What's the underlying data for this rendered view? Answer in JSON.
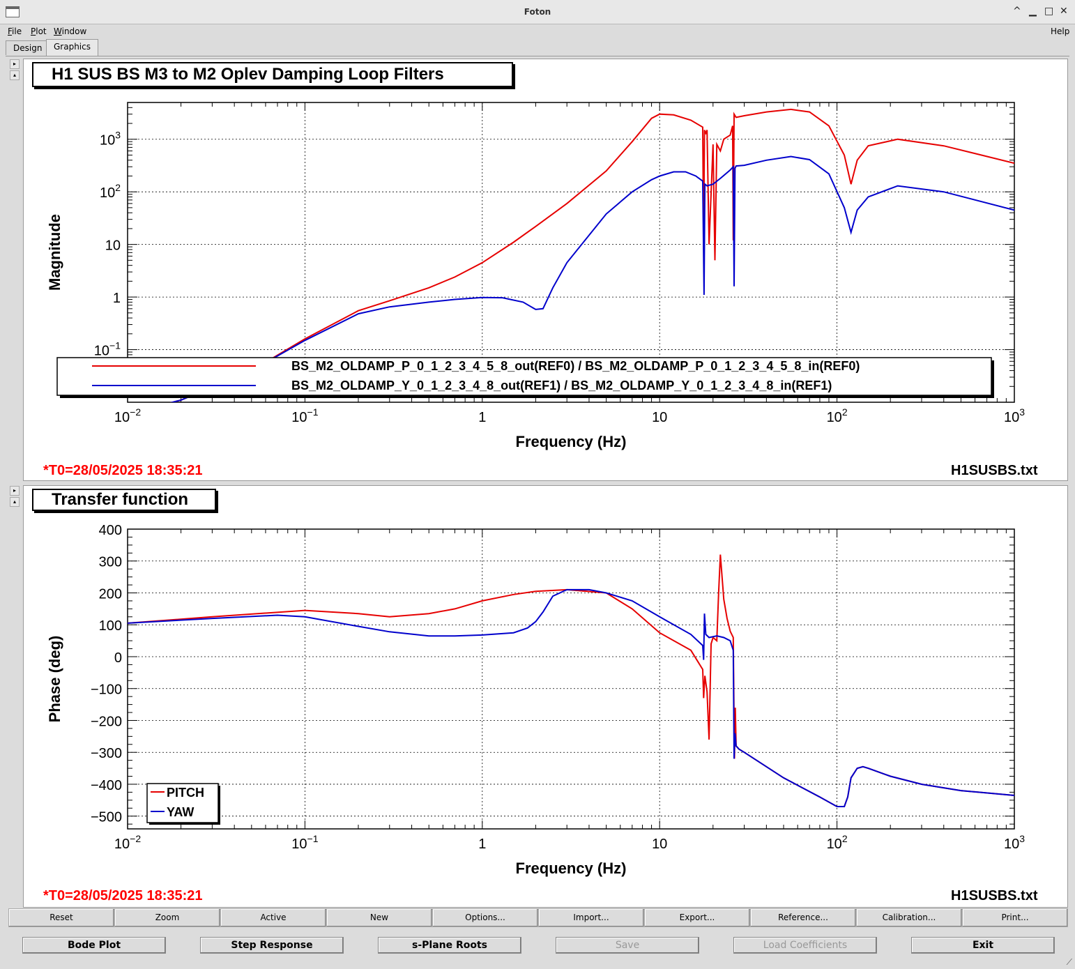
{
  "window": {
    "title": "Foton",
    "min_glyph": "^",
    "restore_glyph": "▁",
    "max_glyph": "□",
    "close_glyph": "✕"
  },
  "menu": {
    "file": "File",
    "file_key": "F",
    "file_rest": "ile",
    "plot_key": "P",
    "plot_rest": "lot",
    "window_key": "W",
    "window_rest": "indow",
    "help": "Help"
  },
  "tabs": {
    "design": "Design",
    "graphics": "Graphics"
  },
  "top_plot": {
    "title": "H1 SUS BS M3 to M2 Oplev Damping Loop Filters",
    "ylabel": "Magnitude",
    "xlabel": "Frequency (Hz)",
    "t0": "*T0=28/05/2025 18:35:21",
    "filename": "H1SUSBS.txt",
    "legend": [
      {
        "label": "BS_M2_OLDAMP_P_0_1_2_3_4_5_8_out(REF0) / BS_M2_OLDAMP_P_0_1_2_3_4_5_8_in(REF0)",
        "color": "#e60000"
      },
      {
        "label": "BS_M2_OLDAMP_Y_0_1_2_3_4_8_out(REF1) / BS_M2_OLDAMP_Y_0_1_2_3_4_8_in(REF1)",
        "color": "#0000cc"
      }
    ]
  },
  "bottom_plot": {
    "title": "Transfer function",
    "ylabel": "Phase (deg)",
    "xlabel": "Frequency (Hz)",
    "t0": "*T0=28/05/2025 18:35:21",
    "filename": "H1SUSBS.txt",
    "legend": [
      {
        "label": "PITCH",
        "color": "#e60000"
      },
      {
        "label": "YAW",
        "color": "#0000cc"
      }
    ]
  },
  "chart_data": [
    {
      "type": "line",
      "title": "H1 SUS BS M3 to M2 Oplev Damping Loop Filters",
      "xlabel": "Frequency (Hz)",
      "ylabel": "Magnitude",
      "xscale": "log",
      "yscale": "log",
      "xlim": [
        0.01,
        1000
      ],
      "ylim": [
        0.01,
        5000
      ],
      "xticks": [
        "10^-2",
        "10^-1",
        "1",
        "10",
        "10^2",
        "10^3"
      ],
      "yticks": [
        "10^-1",
        "1",
        "10",
        "10^2",
        "10^3"
      ],
      "grid": true,
      "legend_position": "bottom",
      "series": [
        {
          "name": "BS_M2_OLDAMP_P_0_1_2_3_4_5_8_out(REF0) / BS_M2_OLDAMP_P_0_1_2_3_4_5_8_in(REF0)",
          "color": "#e60000",
          "x": [
            0.01,
            0.02,
            0.05,
            0.1,
            0.2,
            0.3,
            0.5,
            0.7,
            1,
            1.5,
            2,
            3,
            5,
            7,
            9,
            10,
            12,
            15,
            17.5,
            17.7,
            17.9,
            18.2,
            18.5,
            19,
            20,
            20.5,
            21,
            22,
            23,
            25,
            25.8,
            26,
            26.3,
            27,
            30,
            40,
            55,
            70,
            90,
            110,
            120,
            130,
            150,
            220,
            400,
            1000
          ],
          "y": [
            0.006,
            0.011,
            0.04,
            0.16,
            0.55,
            0.85,
            1.5,
            2.4,
            4.5,
            11,
            22,
            60,
            250,
            900,
            2500,
            3000,
            2900,
            2300,
            1700,
            8,
            1500,
            1300,
            1500,
            10,
            800,
            5,
            800,
            600,
            1000,
            1200,
            1800,
            12,
            3000,
            2600,
            2800,
            3300,
            3700,
            3300,
            1800,
            500,
            140,
            400,
            750,
            1000,
            750,
            350
          ]
        },
        {
          "name": "BS_M2_OLDAMP_Y_0_1_2_3_4_8_out(REF1) / BS_M2_OLDAMP_Y_0_1_2_3_4_8_in(REF1)",
          "color": "#0000cc",
          "x": [
            0.01,
            0.02,
            0.05,
            0.1,
            0.2,
            0.3,
            0.5,
            0.7,
            1,
            1.3,
            1.7,
            2,
            2.2,
            2.5,
            3,
            4,
            5,
            7,
            9,
            10,
            12,
            14,
            16,
            17.5,
            17.8,
            18,
            18.5,
            20,
            22,
            25,
            26,
            26.3,
            26.6,
            27,
            30,
            40,
            55,
            70,
            90,
            110,
            120,
            130,
            150,
            220,
            400,
            1000
          ],
          "y": [
            0.006,
            0.011,
            0.04,
            0.15,
            0.48,
            0.65,
            0.8,
            0.9,
            0.98,
            0.97,
            0.8,
            0.58,
            0.6,
            1.5,
            4.5,
            15,
            38,
            100,
            170,
            200,
            240,
            240,
            200,
            160,
            1.1,
            140,
            130,
            140,
            180,
            260,
            300,
            1.6,
            280,
            310,
            320,
            400,
            470,
            410,
            220,
            50,
            17,
            45,
            80,
            130,
            100,
            45
          ]
        }
      ]
    },
    {
      "type": "line",
      "title": "Transfer function",
      "xlabel": "Frequency (Hz)",
      "ylabel": "Phase (deg)",
      "xscale": "log",
      "xlim": [
        0.01,
        1000
      ],
      "ylim": [
        -540,
        400
      ],
      "yticks": [
        400,
        300,
        200,
        100,
        0,
        -100,
        -200,
        -300,
        -400,
        -500
      ],
      "grid": true,
      "legend_position": "bottom-left",
      "series": [
        {
          "name": "PITCH",
          "color": "#e60000",
          "x": [
            0.01,
            0.03,
            0.1,
            0.2,
            0.3,
            0.5,
            0.7,
            1,
            1.5,
            2,
            3,
            5,
            7,
            10,
            15,
            17.5,
            17.7,
            18,
            18.5,
            19,
            19.5,
            20,
            21,
            21.5,
            22,
            23,
            24,
            25,
            26,
            26.4,
            26.7,
            27,
            28,
            30,
            50,
            80,
            100,
            110,
            115,
            120,
            130,
            140,
            150,
            200,
            300,
            500,
            1000
          ],
          "y": [
            105,
            125,
            145,
            135,
            125,
            135,
            150,
            175,
            195,
            205,
            210,
            200,
            150,
            75,
            20,
            -40,
            -130,
            -60,
            -110,
            -260,
            40,
            60,
            50,
            200,
            320,
            180,
            120,
            80,
            60,
            -320,
            -160,
            -280,
            -290,
            -300,
            -380,
            -440,
            -470,
            -470,
            -440,
            -380,
            -350,
            -345,
            -350,
            -375,
            -400,
            -420,
            -435
          ]
        },
        {
          "name": "YAW",
          "color": "#0000cc",
          "x": [
            0.01,
            0.03,
            0.07,
            0.1,
            0.2,
            0.3,
            0.5,
            0.7,
            1,
            1.5,
            1.8,
            2,
            2.2,
            2.5,
            3,
            4,
            5,
            7,
            10,
            15,
            17.5,
            17.7,
            17.9,
            18.2,
            19,
            21,
            23,
            25,
            26,
            26.3,
            26.6,
            27,
            28,
            30,
            50,
            80,
            100,
            110,
            115,
            120,
            130,
            140,
            150,
            200,
            300,
            500,
            1000
          ],
          "y": [
            105,
            120,
            130,
            125,
            95,
            78,
            65,
            65,
            68,
            75,
            90,
            110,
            140,
            190,
            210,
            210,
            200,
            175,
            125,
            70,
            35,
            -10,
            135,
            70,
            60,
            65,
            60,
            50,
            20,
            -320,
            -240,
            -280,
            -290,
            -300,
            -380,
            -440,
            -470,
            -470,
            -440,
            -380,
            -350,
            -345,
            -350,
            -375,
            -400,
            -420,
            -435
          ]
        }
      ]
    }
  ],
  "toolbar": {
    "reset": "Reset",
    "zoom": "Zoom",
    "active": "Active",
    "new": "New",
    "options": "Options...",
    "import": "Import...",
    "export": "Export...",
    "reference": "Reference...",
    "calibration": "Calibration...",
    "print": "Print..."
  },
  "bottom_buttons": {
    "bode": "Bode Plot",
    "step": "Step Response",
    "splane": "s-Plane Roots",
    "save": "Save",
    "load": "Load Coefficients",
    "exit": "Exit"
  }
}
